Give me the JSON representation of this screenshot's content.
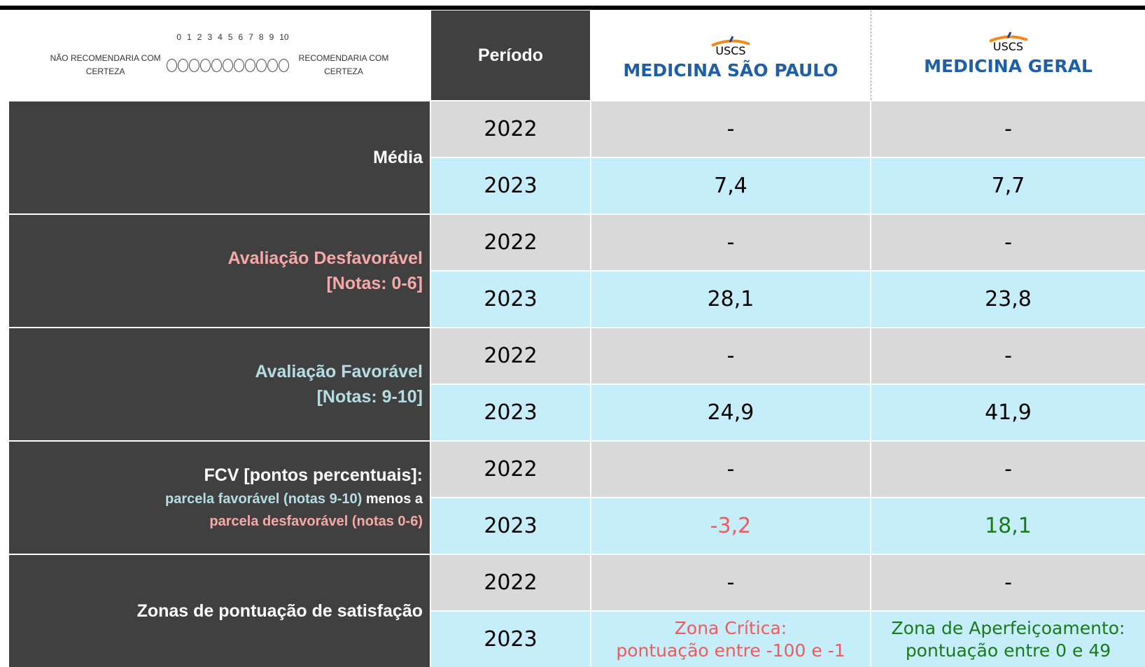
{
  "header": {
    "scale_numbers": [
      "0",
      "1",
      "2",
      "3",
      "4",
      "5",
      "6",
      "7",
      "8",
      "9",
      "10"
    ],
    "left_label": [
      "NÃO RECOMENDARIA COM",
      "CERTEZA"
    ],
    "right_label": [
      "RECOMENDARIA COM",
      "CERTEZA"
    ],
    "period": "Período",
    "columns": [
      {
        "logo": "USCS",
        "name": "MEDICINA SÃO PAULO"
      },
      {
        "logo": "USCS",
        "name": "MEDICINA GERAL"
      }
    ]
  },
  "rows": [
    {
      "label": [
        [
          {
            "text": "Média",
            "color": "#ffffff"
          }
        ]
      ],
      "periods": [
        "2022",
        "2023"
      ],
      "values": [
        [
          "-",
          "-"
        ],
        [
          "7,4",
          "7,7"
        ]
      ]
    },
    {
      "label": [
        [
          {
            "text": "Avaliação Desfavorável",
            "color": "#f7a8a8"
          }
        ],
        [
          {
            "text": "[Notas: 0-6]",
            "color": "#f7a8a8"
          }
        ]
      ],
      "periods": [
        "2022",
        "2023"
      ],
      "values": [
        [
          "-",
          "-"
        ],
        [
          "28,1",
          "23,8"
        ]
      ]
    },
    {
      "label": [
        [
          {
            "text": "Avaliação Favorável",
            "color": "#b5dde3"
          }
        ],
        [
          {
            "text": "[Notas: 9-10]",
            "color": "#b5dde3"
          }
        ]
      ],
      "periods": [
        "2022",
        "2023"
      ],
      "values": [
        [
          "-",
          "-"
        ],
        [
          "24,9",
          "41,9"
        ]
      ]
    },
    {
      "label": [
        [
          {
            "text": "FCV [pontos percentuais]:",
            "color": "#ffffff"
          }
        ],
        [
          {
            "text": "parcela favorável (notas 9-10)",
            "color": "#b5dde3"
          },
          {
            "text": " menos a",
            "color": "#ffffff"
          }
        ],
        [
          {
            "text": "parcela desfavorável (notas 0-6)",
            "color": "#f7a8a8"
          }
        ]
      ],
      "periods": [
        "2022",
        "2023"
      ],
      "values": [
        [
          "-",
          "-"
        ],
        [
          "-3,2",
          "18,1"
        ]
      ],
      "value_colors": [
        [
          "#000000",
          "#000000"
        ],
        [
          "#f05a5a",
          "#1a7a1a"
        ]
      ]
    },
    {
      "label": [
        [
          {
            "text": "Zonas de pontuação de satisfação",
            "color": "#ffffff"
          }
        ]
      ],
      "periods": [
        "2022",
        "2023"
      ],
      "values": [
        [
          "-",
          "-"
        ],
        [
          [
            "Zona Crítica:",
            "pontuação entre -100 e -1"
          ],
          [
            "Zona de Aperfeiçoamento:",
            "pontuação entre 0 e 49"
          ]
        ]
      ],
      "value_colors": [
        [
          "#000000",
          "#000000"
        ],
        [
          "#f05a5a",
          "#1a7a1a"
        ]
      ]
    }
  ]
}
